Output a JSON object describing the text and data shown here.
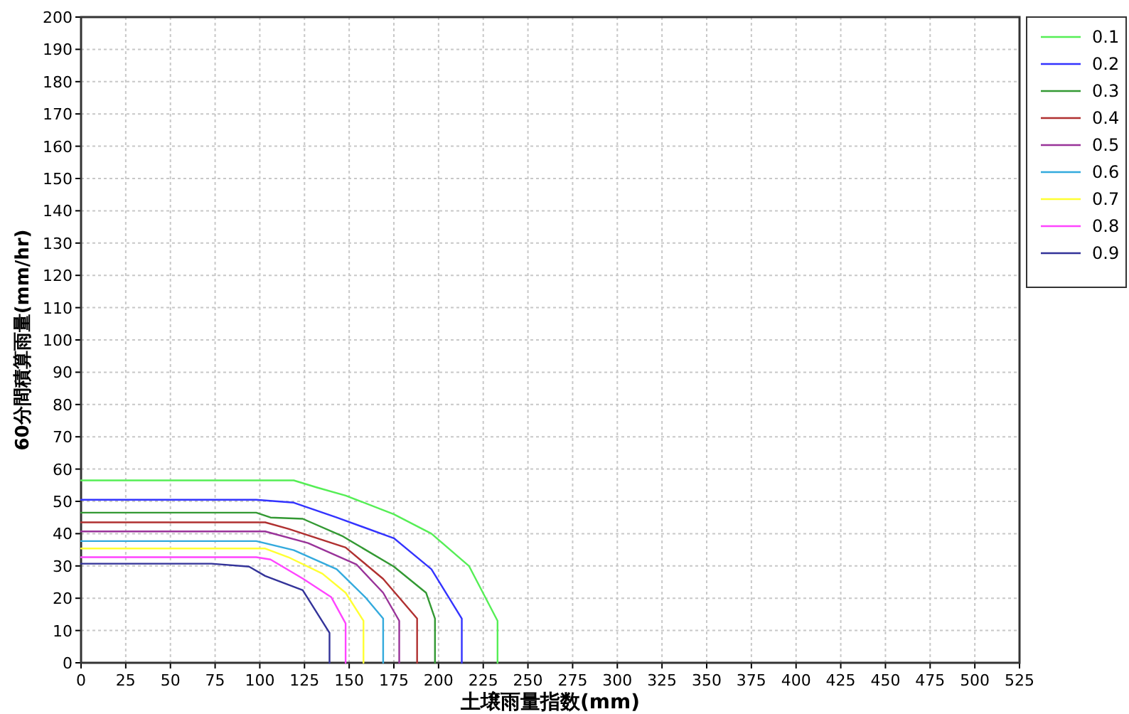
{
  "chart_data": {
    "type": "line",
    "xlabel": "土壌雨量指数(mm)",
    "ylabel": "60分間積算雨量(mm/hr)",
    "xlim": [
      0,
      525
    ],
    "xticks": [
      0,
      25,
      50,
      75,
      100,
      125,
      150,
      175,
      200,
      225,
      250,
      275,
      300,
      325,
      350,
      375,
      400,
      425,
      450,
      475,
      500,
      525
    ],
    "ylim": [
      0,
      200
    ],
    "yticks": [
      0,
      10,
      20,
      30,
      40,
      50,
      60,
      70,
      80,
      90,
      100,
      110,
      120,
      130,
      140,
      150,
      160,
      170,
      180,
      190,
      200
    ],
    "grid": true,
    "legend": "top right",
    "series": [
      {
        "name": "0.1",
        "color": "#55ee55",
        "x": [
          0,
          119,
          132,
          148,
          175,
          196,
          217,
          233,
          233
        ],
        "values": [
          56.5,
          56.5,
          54.3,
          51.8,
          46,
          40,
          30,
          13,
          0
        ]
      },
      {
        "name": "0.2",
        "color": "#3333ff",
        "x": [
          0,
          98,
          119,
          143,
          175,
          196,
          213,
          213
        ],
        "values": [
          50.5,
          50.5,
          49.6,
          45,
          38.6,
          29,
          13.7,
          0
        ]
      },
      {
        "name": "0.3",
        "color": "#339933",
        "x": [
          0,
          98,
          106,
          124,
          146,
          175,
          193,
          198,
          198
        ],
        "values": [
          46.5,
          46.5,
          45,
          44.6,
          39.3,
          29.8,
          21.7,
          13.7,
          0
        ]
      },
      {
        "name": "0.4",
        "color": "#b03030",
        "x": [
          0,
          103,
          116,
          148,
          169,
          188,
          188
        ],
        "values": [
          43.5,
          43.5,
          41.5,
          35.7,
          26,
          13.7,
          0
        ]
      },
      {
        "name": "0.5",
        "color": "#993399",
        "x": [
          0,
          103,
          127,
          154,
          169,
          178,
          178
        ],
        "values": [
          40.7,
          40.7,
          37.1,
          30.5,
          21.7,
          13,
          0
        ]
      },
      {
        "name": "0.6",
        "color": "#33aadd",
        "x": [
          0,
          98,
          119,
          143,
          159,
          169,
          169
        ],
        "values": [
          37.7,
          37.7,
          34.9,
          29,
          20.3,
          13.7,
          0
        ]
      },
      {
        "name": "0.7",
        "color": "#ffff33",
        "x": [
          0,
          103,
          116,
          135,
          148,
          158,
          158
        ],
        "values": [
          35.4,
          35.4,
          32.7,
          27.6,
          21.7,
          13,
          0
        ]
      },
      {
        "name": "0.8",
        "color": "#ff44ff",
        "x": [
          0,
          98,
          106,
          124,
          140,
          148,
          148
        ],
        "values": [
          32.7,
          32.7,
          32,
          26.1,
          20.3,
          12.2,
          0
        ]
      },
      {
        "name": "0.9",
        "color": "#333399",
        "x": [
          0,
          73,
          94,
          103,
          124,
          139,
          139
        ],
        "values": [
          30.7,
          30.7,
          29.8,
          26.9,
          22.5,
          9.3,
          0
        ]
      }
    ]
  }
}
